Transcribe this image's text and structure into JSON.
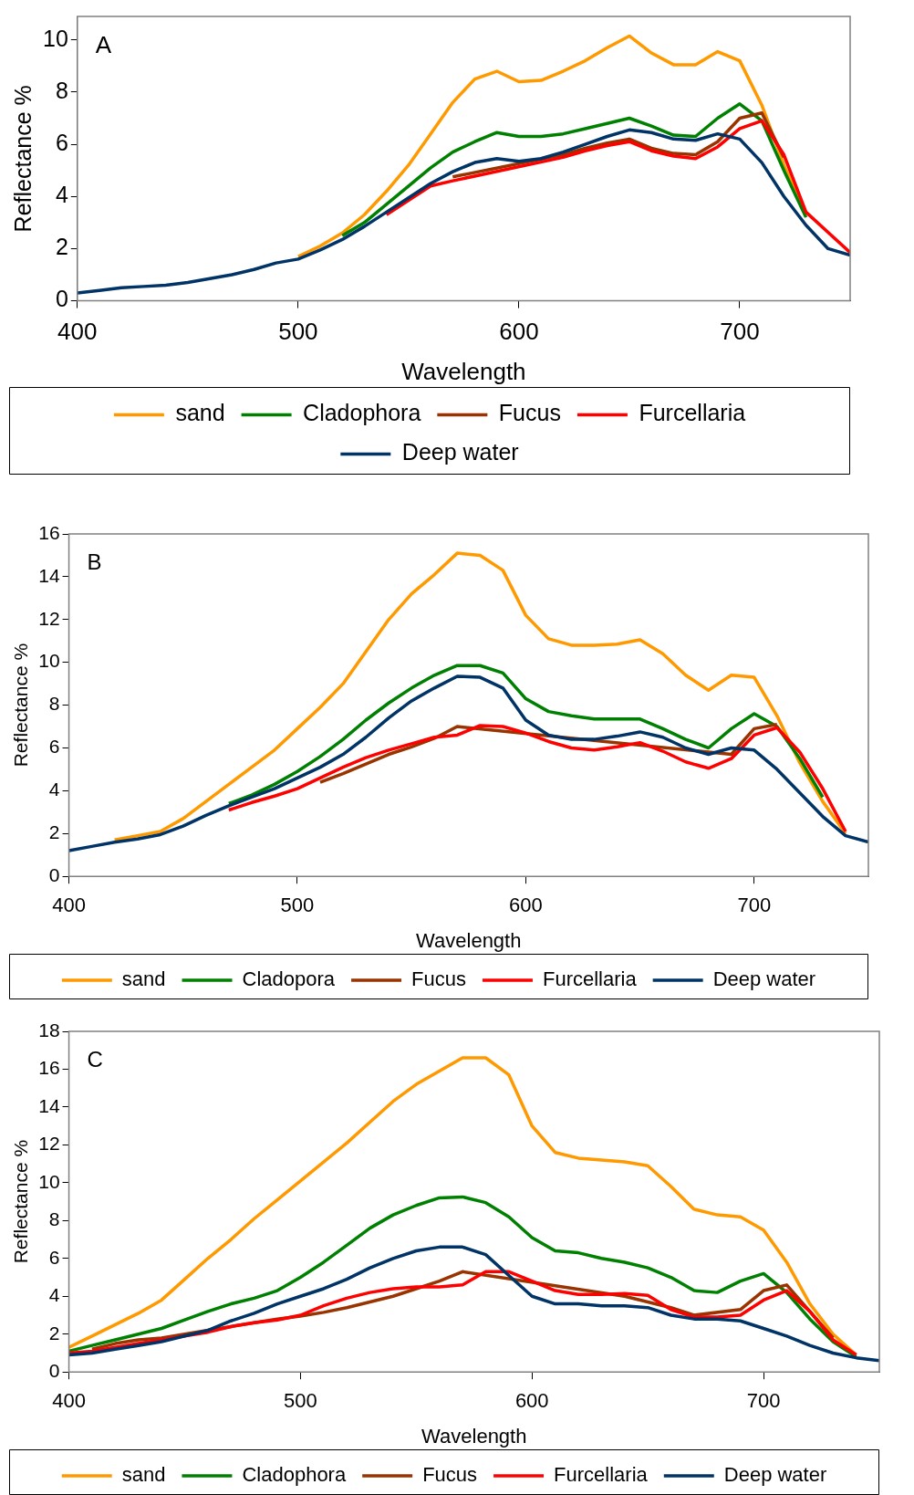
{
  "chart_data": [
    {
      "type": "line",
      "annotations": [
        "A"
      ],
      "xlabel": "Wavelength",
      "ylabel": "Reflectance %",
      "xlim": [
        400,
        750
      ],
      "xticks": [
        400,
        500,
        600,
        700
      ],
      "ylim": [
        0,
        10.9
      ],
      "yticks": [
        0,
        2,
        4,
        6,
        8,
        10
      ],
      "grid": false,
      "legend": "bottom",
      "marker": "none",
      "x": [
        400,
        410,
        420,
        430,
        440,
        450,
        460,
        470,
        480,
        490,
        500,
        510,
        520,
        530,
        540,
        550,
        560,
        570,
        580,
        590,
        600,
        610,
        620,
        630,
        640,
        650,
        660,
        670,
        680,
        690,
        700,
        710,
        720,
        730,
        740,
        750
      ],
      "series": [
        {
          "name": "sand",
          "color": "#ff9900",
          "values": [
            null,
            null,
            null,
            null,
            null,
            null,
            null,
            null,
            null,
            null,
            1.7,
            2.1,
            2.6,
            3.3,
            4.2,
            5.2,
            6.4,
            7.6,
            8.5,
            8.8,
            8.4,
            8.45,
            8.8,
            9.2,
            9.7,
            10.15,
            9.5,
            9.05,
            9.05,
            9.55,
            9.2,
            7.5,
            5.2,
            3.3,
            null,
            null
          ]
        },
        {
          "name": "Cladophora",
          "color": "#008000",
          "values": [
            null,
            null,
            null,
            null,
            null,
            null,
            null,
            null,
            null,
            null,
            null,
            null,
            2.5,
            3.0,
            3.7,
            4.4,
            5.1,
            5.7,
            6.1,
            6.45,
            6.3,
            6.3,
            6.4,
            6.6,
            6.8,
            7.0,
            6.7,
            6.35,
            6.3,
            7.0,
            7.55,
            6.9,
            5.0,
            3.2,
            null,
            null
          ]
        },
        {
          "name": "Fucus",
          "color": "#993300",
          "values": [
            null,
            null,
            null,
            null,
            null,
            null,
            null,
            null,
            null,
            null,
            null,
            null,
            null,
            null,
            null,
            null,
            null,
            4.75,
            null,
            null,
            null,
            null,
            5.6,
            5.85,
            6.05,
            6.2,
            5.85,
            5.65,
            5.6,
            6.1,
            7.0,
            7.2,
            5.5,
            null,
            null,
            null
          ]
        },
        {
          "name": "Furcellaria",
          "color": "#ff0000",
          "values": [
            null,
            null,
            null,
            null,
            null,
            null,
            null,
            null,
            null,
            null,
            null,
            null,
            null,
            null,
            3.3,
            3.85,
            4.4,
            4.6,
            null,
            null,
            null,
            null,
            5.5,
            5.75,
            5.95,
            6.1,
            5.75,
            5.55,
            5.45,
            5.9,
            6.6,
            6.9,
            5.6,
            3.4,
            null,
            1.85
          ]
        },
        {
          "name": "Deep water",
          "color": "#003366",
          "values": [
            0.3,
            0.4,
            0.5,
            0.55,
            0.6,
            0.7,
            0.85,
            1.0,
            1.2,
            1.45,
            1.6,
            1.95,
            2.35,
            2.85,
            3.4,
            3.95,
            4.5,
            4.95,
            5.3,
            5.45,
            5.35,
            5.45,
            5.7,
            6.0,
            6.3,
            6.55,
            6.45,
            6.2,
            6.15,
            6.4,
            6.2,
            5.3,
            4.0,
            2.9,
            2.0,
            1.75
          ]
        }
      ]
    },
    {
      "type": "line",
      "annotations": [
        "B"
      ],
      "xlabel": "Wavelength",
      "ylabel": "Reflectance %",
      "xlim": [
        400,
        750
      ],
      "xticks": [
        400,
        500,
        600,
        700
      ],
      "ylim": [
        0,
        16
      ],
      "yticks": [
        0,
        2,
        4,
        6,
        8,
        10,
        12,
        14,
        16
      ],
      "grid": false,
      "legend": "bottom",
      "marker": "none",
      "x": [
        400,
        410,
        420,
        430,
        440,
        450,
        460,
        470,
        480,
        490,
        500,
        510,
        520,
        530,
        540,
        550,
        560,
        570,
        580,
        590,
        600,
        610,
        620,
        630,
        640,
        650,
        660,
        670,
        680,
        690,
        700,
        710,
        720,
        730,
        740,
        750
      ],
      "series": [
        {
          "name": "sand",
          "color": "#ff9900",
          "values": [
            null,
            null,
            1.7,
            1.9,
            2.1,
            2.7,
            3.5,
            4.3,
            5.1,
            5.9,
            6.9,
            7.9,
            9.0,
            10.5,
            12.0,
            13.2,
            14.1,
            15.1,
            15.0,
            14.3,
            12.2,
            11.1,
            10.8,
            10.8,
            10.85,
            11.05,
            10.4,
            9.4,
            8.7,
            9.4,
            9.3,
            7.5,
            5.3,
            3.5,
            2.0,
            null
          ]
        },
        {
          "name": "Cladopora",
          "color": "#008000",
          "values": [
            null,
            null,
            null,
            null,
            null,
            null,
            null,
            3.4,
            3.8,
            4.3,
            4.9,
            5.6,
            6.4,
            7.3,
            8.1,
            8.8,
            9.4,
            9.85,
            9.85,
            9.5,
            8.3,
            7.7,
            7.5,
            7.35,
            7.35,
            7.35,
            6.9,
            6.4,
            6.0,
            6.9,
            7.6,
            7.0,
            5.5,
            3.7,
            null,
            null
          ]
        },
        {
          "name": "Fucus",
          "color": "#993300",
          "values": [
            null,
            null,
            null,
            null,
            null,
            null,
            null,
            null,
            null,
            null,
            null,
            4.4,
            4.8,
            5.25,
            5.7,
            6.05,
            6.45,
            7.0,
            null,
            null,
            null,
            null,
            null,
            null,
            null,
            null,
            null,
            null,
            null,
            5.7,
            6.9,
            7.1,
            null,
            null,
            null,
            null
          ]
        },
        {
          "name": "Furcellaria",
          "color": "#ff0000",
          "values": [
            null,
            null,
            null,
            null,
            null,
            null,
            null,
            3.1,
            3.45,
            3.75,
            4.1,
            4.6,
            5.1,
            5.55,
            5.9,
            6.2,
            6.5,
            6.6,
            7.05,
            7.0,
            6.7,
            6.3,
            6.0,
            5.9,
            6.05,
            6.25,
            5.85,
            5.35,
            5.05,
            5.5,
            6.6,
            6.95,
            5.8,
            4.1,
            2.1,
            null
          ]
        },
        {
          "name": "Deep water",
          "color": "#003366",
          "values": [
            1.2,
            1.4,
            1.6,
            1.75,
            1.95,
            2.35,
            2.85,
            3.3,
            3.7,
            4.1,
            4.6,
            5.1,
            5.7,
            6.5,
            7.4,
            8.2,
            8.8,
            9.35,
            9.3,
            8.8,
            7.3,
            6.6,
            6.4,
            6.4,
            6.55,
            6.75,
            6.5,
            6.0,
            5.7,
            6.0,
            5.9,
            5.0,
            3.9,
            2.8,
            1.9,
            1.6
          ]
        }
      ]
    },
    {
      "type": "line",
      "annotations": [
        "C"
      ],
      "xlabel": "Wavelength",
      "ylabel": "Reflectance %",
      "xlim": [
        400,
        750
      ],
      "xticks": [
        400,
        500,
        600,
        700
      ],
      "ylim": [
        0,
        18
      ],
      "yticks": [
        0,
        2,
        4,
        6,
        8,
        10,
        12,
        14,
        16,
        18
      ],
      "grid": false,
      "legend": "bottom",
      "marker": "none",
      "x": [
        400,
        410,
        420,
        430,
        440,
        450,
        460,
        470,
        480,
        490,
        500,
        510,
        520,
        530,
        540,
        550,
        560,
        570,
        580,
        590,
        600,
        610,
        620,
        630,
        640,
        650,
        660,
        670,
        680,
        690,
        700,
        710,
        720,
        730,
        740,
        750
      ],
      "series": [
        {
          "name": "sand",
          "color": "#ff9900",
          "values": [
            1.3,
            1.9,
            2.5,
            3.1,
            3.8,
            4.9,
            6.0,
            7.0,
            8.1,
            9.1,
            10.1,
            11.1,
            12.1,
            13.2,
            14.3,
            15.2,
            15.9,
            16.6,
            16.6,
            15.7,
            13.0,
            11.6,
            11.3,
            11.2,
            11.1,
            10.9,
            9.8,
            8.6,
            8.3,
            8.2,
            7.5,
            5.8,
            3.6,
            2.0,
            0.9,
            null
          ]
        },
        {
          "name": "Cladophora",
          "color": "#008000",
          "values": [
            1.1,
            1.4,
            1.7,
            2.0,
            2.3,
            2.75,
            3.2,
            3.6,
            3.9,
            4.3,
            5.0,
            5.8,
            6.7,
            7.6,
            8.3,
            8.8,
            9.2,
            9.25,
            8.95,
            8.2,
            7.1,
            6.4,
            6.3,
            6.0,
            5.8,
            5.5,
            5.0,
            4.3,
            4.2,
            4.8,
            5.2,
            4.2,
            2.8,
            1.6,
            0.8,
            null
          ]
        },
        {
          "name": "Fucus",
          "color": "#993300",
          "values": [
            null,
            1.2,
            1.5,
            1.7,
            1.8,
            2.0,
            2.2,
            2.4,
            2.6,
            2.8,
            2.95,
            3.15,
            3.4,
            3.7,
            4.0,
            4.4,
            4.8,
            5.3,
            null,
            null,
            null,
            null,
            null,
            null,
            4.0,
            null,
            3.4,
            3.0,
            null,
            3.3,
            4.3,
            4.6,
            3.2,
            1.8,
            null,
            null
          ]
        },
        {
          "name": "Furcellaria",
          "color": "#ff0000",
          "values": [
            1.0,
            1.1,
            1.3,
            1.5,
            1.7,
            1.9,
            2.1,
            2.4,
            2.6,
            2.75,
            3.0,
            3.5,
            3.9,
            4.2,
            4.4,
            4.5,
            4.5,
            4.6,
            5.3,
            5.3,
            4.8,
            4.3,
            4.1,
            4.1,
            4.15,
            4.05,
            3.3,
            2.9,
            2.9,
            3.0,
            3.8,
            4.3,
            3.2,
            1.7,
            0.9,
            null
          ]
        },
        {
          "name": "Deep water",
          "color": "#003366",
          "values": [
            0.9,
            1.0,
            1.2,
            1.4,
            1.6,
            1.9,
            2.2,
            2.7,
            3.1,
            3.6,
            4.0,
            4.4,
            4.9,
            5.5,
            6.0,
            6.4,
            6.6,
            6.6,
            6.2,
            5.1,
            4.0,
            3.6,
            3.6,
            3.5,
            3.5,
            3.4,
            3.0,
            2.8,
            2.8,
            2.7,
            2.3,
            1.9,
            1.4,
            1.0,
            0.75,
            0.6
          ]
        }
      ]
    }
  ]
}
